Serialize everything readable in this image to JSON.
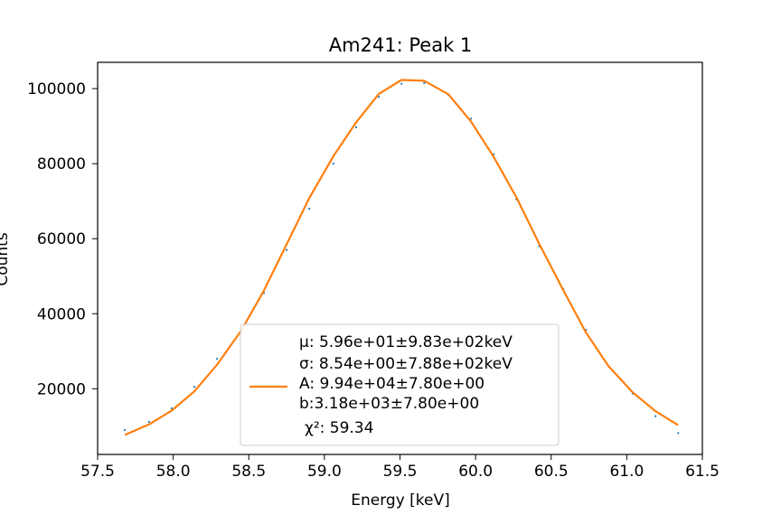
{
  "chart_data": {
    "type": "line",
    "title": "Am241: Peak 1",
    "xlabel": "Energy [keV]",
    "ylabel": "Counts",
    "xlim": [
      57.5,
      61.5
    ],
    "ylim": [
      2500,
      107000
    ],
    "x_ticks": [
      57.5,
      58.0,
      58.5,
      59.0,
      59.5,
      60.0,
      60.5,
      61.0,
      61.5
    ],
    "x_tick_labels": [
      "57.5",
      "58.0",
      "58.5",
      "59.0",
      "59.5",
      "60.0",
      "60.5",
      "61.0",
      "61.5"
    ],
    "y_ticks": [
      20000,
      40000,
      60000,
      80000,
      100000
    ],
    "y_tick_labels": [
      "20000",
      "40000",
      "60000",
      "80000",
      "100000"
    ],
    "grid": false,
    "colors": {
      "data": "#1f77b4",
      "fit": "#ff7f0e"
    },
    "series": [
      {
        "kind": "points",
        "x": [
          57.68,
          57.84,
          57.99,
          58.14,
          58.29,
          58.45,
          58.6,
          58.75,
          58.9,
          59.06,
          59.21,
          59.36,
          59.51,
          59.66,
          59.82,
          59.97,
          60.12,
          60.27,
          60.42,
          60.58,
          60.73,
          60.88,
          61.04,
          61.19,
          61.34
        ],
        "y": [
          9000,
          11200,
          14800,
          20500,
          28000,
          35000,
          45500,
          57000,
          68000,
          80000,
          89700,
          97800,
          101300,
          101500,
          98300,
          92000,
          82500,
          70500,
          58000,
          46600,
          35700,
          26000,
          18700,
          12700,
          8200
        ]
      },
      {
        "kind": "fit",
        "x": [
          57.68,
          57.84,
          57.99,
          58.14,
          58.29,
          58.45,
          58.6,
          58.75,
          58.9,
          59.06,
          59.21,
          59.36,
          59.51,
          59.66,
          59.82,
          59.97,
          60.12,
          60.27,
          60.42,
          60.58,
          60.73,
          60.88,
          61.04,
          61.19,
          61.34
        ],
        "y": [
          7700,
          10500,
          14200,
          19300,
          26400,
          35500,
          46200,
          58500,
          70800,
          82000,
          91000,
          98600,
          102300,
          102100,
          98500,
          91200,
          81800,
          71000,
          58700,
          46300,
          35000,
          26000,
          19000,
          14000,
          10300
        ]
      }
    ],
    "legend": {
      "placement": "lower-center",
      "lines": [
        "μ: 5.96e+01±9.83e+02keV",
        "σ: 8.54e+00±7.88e+02keV",
        "A: 9.94e+04±7.80e+00",
        "b:3.18e+03±7.80e+00",
        "χ²: 59.34"
      ]
    }
  }
}
